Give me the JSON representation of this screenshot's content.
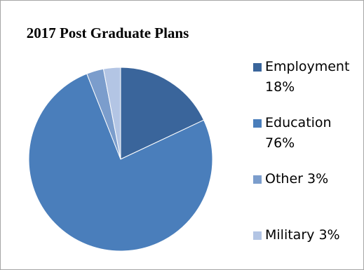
{
  "chart_data": {
    "type": "pie",
    "title": "2017 Post Graduate Plans",
    "slices": [
      {
        "name": "Employment",
        "value": 18,
        "label": "18%",
        "color": "#3A659B"
      },
      {
        "name": "Education",
        "value": 76,
        "label": "76%",
        "color": "#4A7EBB"
      },
      {
        "name": "Other",
        "value": 3,
        "label": "3%",
        "color": "#7B9DCC"
      },
      {
        "name": "Military",
        "value": 3,
        "label": "3%",
        "color": "#B3C5E4"
      }
    ],
    "legend_position": "right",
    "start_angle": "top, clockwise"
  }
}
